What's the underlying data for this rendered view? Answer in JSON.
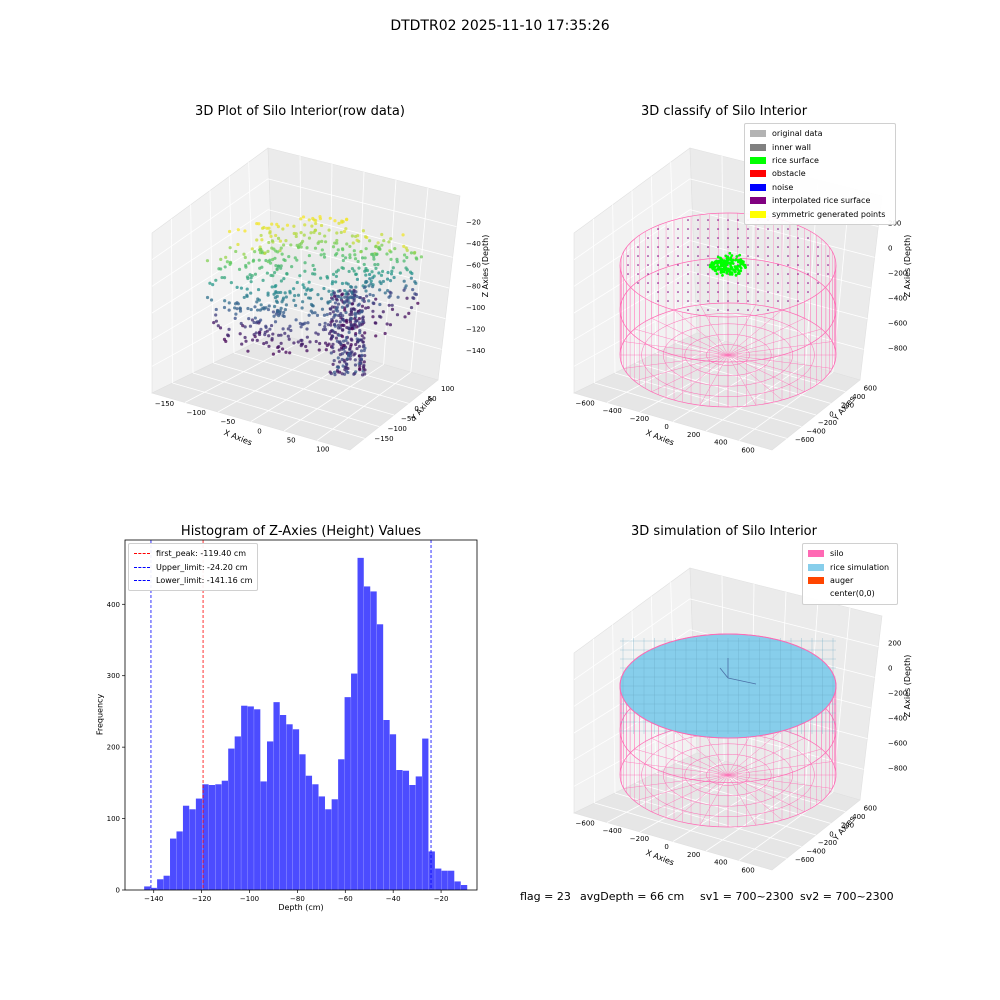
{
  "suptitle": "DTDTR02 2025-11-10 17:35:26",
  "panels": {
    "raw": {
      "title": "3D Plot of Silo Interior(row data)",
      "xlabel": "X Axies",
      "ylabel": "Y Axies",
      "zlabel": "Z Axies (Depth)",
      "xticks": [
        "−150",
        "−100",
        "−50",
        "0",
        "50",
        "100"
      ],
      "yticks": [
        "100",
        "50",
        "0",
        "−50",
        "−100",
        "−150"
      ],
      "zticks": [
        "−20",
        "−40",
        "−60",
        "−80",
        "−100",
        "−120",
        "−140"
      ]
    },
    "classify": {
      "title": "3D classify of Silo Interior",
      "xlabel": "X Axies",
      "ylabel": "Y Axies",
      "zlabel": "Z Axies (Depth)",
      "xticks": [
        "−600",
        "−400",
        "−200",
        "0",
        "200",
        "400",
        "600"
      ],
      "yticks": [
        "600",
        "400",
        "200",
        "0",
        "−200",
        "−400",
        "−600"
      ],
      "zticks": [
        "200",
        "0",
        "−200",
        "−400",
        "−600",
        "−800"
      ],
      "legend": [
        {
          "label": "original data",
          "color": "#b3b3b3"
        },
        {
          "label": "inner wall",
          "color": "#808080"
        },
        {
          "label": "rice surface",
          "color": "#00ff00"
        },
        {
          "label": "obstacle",
          "color": "#ff0000"
        },
        {
          "label": "noise",
          "color": "#0000ff"
        },
        {
          "label": "interpolated rice surface",
          "color": "#800080"
        },
        {
          "label": "symmetric generated points",
          "color": "#ffff00"
        }
      ]
    },
    "simulation": {
      "title": "3D simulation of Silo Interior",
      "xlabel": "X Axies",
      "ylabel": "Y Axies",
      "zlabel": "Z Axies (Depth)",
      "xticks": [
        "−600",
        "−400",
        "−200",
        "0",
        "200",
        "400",
        "600"
      ],
      "yticks": [
        "600",
        "400",
        "200",
        "0",
        "−200",
        "−400",
        "−600"
      ],
      "zticks": [
        "200",
        "0",
        "−200",
        "−400",
        "−600",
        "−800"
      ],
      "legend": [
        {
          "label": "silo",
          "color": "#ff69b4"
        },
        {
          "label": "rice simulation",
          "color": "#87ceeb"
        },
        {
          "label": "auger",
          "color": "#ff4500"
        },
        {
          "label": "center(0,0)",
          "color": ""
        }
      ]
    }
  },
  "footer": {
    "flag": "flag = 23",
    "avg_depth": "avgDepth = 66 cm",
    "sv1": "sv1 = 700~2300",
    "sv2": "sv2 = 700~2300"
  },
  "chart_data": [
    {
      "type": "bar",
      "title": "Histogram of Z-Axies (Height) Values",
      "xlabel": "Depth (cm)",
      "ylabel": "Frequency",
      "xlim": [
        -152,
        -5
      ],
      "ylim": [
        0,
        490
      ],
      "xticks": [
        -140,
        -120,
        -100,
        -80,
        -60,
        -40,
        -20
      ],
      "yticks": [
        0,
        100,
        200,
        300,
        400
      ],
      "bin_start": -144,
      "bin_width": 2.7,
      "values": [
        5,
        3,
        15,
        20,
        72,
        82,
        118,
        113,
        128,
        148,
        147,
        148,
        153,
        198,
        215,
        258,
        257,
        253,
        152,
        208,
        263,
        245,
        232,
        225,
        190,
        160,
        148,
        131,
        113,
        127,
        183,
        270,
        303,
        465,
        425,
        418,
        372,
        238,
        218,
        168,
        167,
        147,
        159,
        212,
        54,
        30,
        27,
        27,
        12,
        7
      ],
      "color": "#0000ff",
      "vlines": [
        {
          "label": "first_peak: -119.40 cm",
          "x": -119.4,
          "color": "#ff0000"
        },
        {
          "label": "Upper_limit: -24.20 cm",
          "x": -24.2,
          "color": "#0000ff"
        },
        {
          "label": "Lower_limit: -141.16 cm",
          "x": -141.16,
          "color": "#0000ff"
        }
      ],
      "legend_position": "upper-left"
    }
  ]
}
